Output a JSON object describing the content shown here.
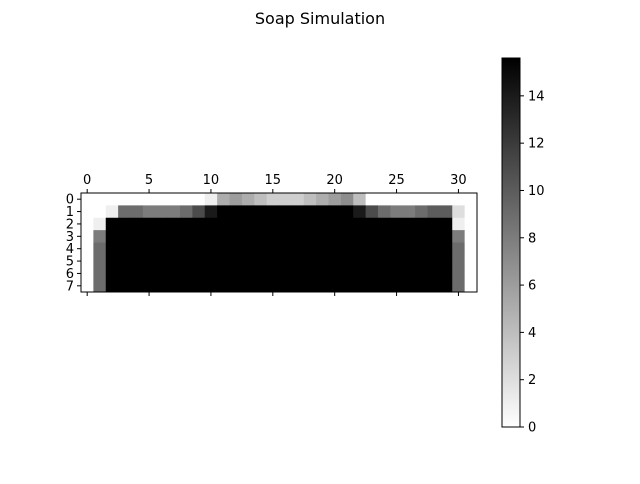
{
  "chart_data": {
    "type": "heatmap",
    "title": "Soap Simulation",
    "xlabel": "",
    "ylabel": "",
    "colormap": "gray_r",
    "colors": {
      "low": "#ffffff",
      "high": "#000000"
    },
    "vmin": 0,
    "vmax": 15.6,
    "xlim": [
      -0.5,
      31.5
    ],
    "ylim": [
      7.5,
      -0.5
    ],
    "x_ticks": [
      0,
      5,
      10,
      15,
      20,
      25,
      30
    ],
    "x_tick_labels": [
      "0",
      "5",
      "10",
      "15",
      "20",
      "25",
      "30"
    ],
    "x_tick_position": "top",
    "y_ticks": [
      0,
      1,
      2,
      3,
      4,
      5,
      6,
      7
    ],
    "y_tick_labels": [
      "0",
      "1",
      "2",
      "3",
      "4",
      "5",
      "6",
      "7"
    ],
    "colorbar": {
      "ticks": [
        0,
        2,
        4,
        6,
        8,
        10,
        12,
        14
      ],
      "tick_labels": [
        "0",
        "2",
        "4",
        "6",
        "8",
        "10",
        "12",
        "14"
      ]
    },
    "grid": false,
    "values": [
      [
        0,
        0,
        0,
        0,
        0,
        0,
        0,
        0,
        0,
        0,
        1,
        5,
        6,
        5,
        4,
        3,
        3,
        3,
        4,
        5,
        6,
        7,
        4,
        0,
        0,
        0,
        0,
        0,
        0,
        0,
        0,
        0
      ],
      [
        0,
        0,
        1,
        9,
        9,
        8,
        8,
        8,
        9,
        11,
        14,
        15.6,
        15.6,
        15.6,
        15.6,
        15.6,
        15.6,
        15.6,
        15.6,
        15.6,
        15.6,
        15.6,
        14,
        11,
        9,
        8,
        8,
        9,
        10,
        10,
        2,
        0
      ],
      [
        0,
        1,
        15.6,
        15.6,
        15.6,
        15.6,
        15.6,
        15.6,
        15.6,
        15.6,
        15.6,
        15.6,
        15.6,
        15.6,
        15.6,
        15.6,
        15.6,
        15.6,
        15.6,
        15.6,
        15.6,
        15.6,
        15.6,
        15.6,
        15.6,
        15.6,
        15.6,
        15.6,
        15.6,
        15.6,
        1,
        0
      ],
      [
        0,
        8,
        15.6,
        15.6,
        15.6,
        15.6,
        15.6,
        15.6,
        15.6,
        15.6,
        15.6,
        15.6,
        15.6,
        15.6,
        15.6,
        15.6,
        15.6,
        15.6,
        15.6,
        15.6,
        15.6,
        15.6,
        15.6,
        15.6,
        15.6,
        15.6,
        15.6,
        15.6,
        15.6,
        15.6,
        8,
        0
      ],
      [
        0,
        9,
        15.6,
        15.6,
        15.6,
        15.6,
        15.6,
        15.6,
        15.6,
        15.6,
        15.6,
        15.6,
        15.6,
        15.6,
        15.6,
        15.6,
        15.6,
        15.6,
        15.6,
        15.6,
        15.6,
        15.6,
        15.6,
        15.6,
        15.6,
        15.6,
        15.6,
        15.6,
        15.6,
        15.6,
        9,
        0
      ],
      [
        0,
        9,
        15.6,
        15.6,
        15.6,
        15.6,
        15.6,
        15.6,
        15.6,
        15.6,
        15.6,
        15.6,
        15.6,
        15.6,
        15.6,
        15.6,
        15.6,
        15.6,
        15.6,
        15.6,
        15.6,
        15.6,
        15.6,
        15.6,
        15.6,
        15.6,
        15.6,
        15.6,
        15.6,
        15.6,
        9,
        0
      ],
      [
        0,
        9,
        15.6,
        15.6,
        15.6,
        15.6,
        15.6,
        15.6,
        15.6,
        15.6,
        15.6,
        15.6,
        15.6,
        15.6,
        15.6,
        15.6,
        15.6,
        15.6,
        15.6,
        15.6,
        15.6,
        15.6,
        15.6,
        15.6,
        15.6,
        15.6,
        15.6,
        15.6,
        15.6,
        15.6,
        9,
        0
      ],
      [
        0,
        9,
        15.6,
        15.6,
        15.6,
        15.6,
        15.6,
        15.6,
        15.6,
        15.6,
        15.6,
        15.6,
        15.6,
        15.6,
        15.6,
        15.6,
        15.6,
        15.6,
        15.6,
        15.6,
        15.6,
        15.6,
        15.6,
        15.6,
        15.6,
        15.6,
        15.6,
        15.6,
        15.6,
        15.6,
        9,
        0
      ]
    ]
  }
}
